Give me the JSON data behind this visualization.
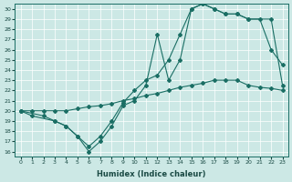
{
  "xlabel": "Humidex (Indice chaleur)",
  "bg_color": "#cce8e5",
  "line_color": "#1a6e64",
  "xlim": [
    -0.5,
    23.5
  ],
  "ylim": [
    15.5,
    30.5
  ],
  "yticks": [
    16,
    17,
    18,
    19,
    20,
    21,
    22,
    23,
    24,
    25,
    26,
    27,
    28,
    29,
    30
  ],
  "xticks": [
    0,
    1,
    2,
    3,
    4,
    5,
    6,
    7,
    8,
    9,
    10,
    11,
    12,
    13,
    14,
    15,
    16,
    17,
    18,
    19,
    20,
    21,
    22,
    23
  ],
  "series1_x": [
    0,
    1,
    2,
    3,
    4,
    5,
    6,
    7,
    8,
    9,
    10,
    11,
    12,
    13,
    14,
    15,
    16,
    17,
    18,
    19,
    20,
    21,
    22,
    23
  ],
  "series1_y": [
    20,
    20,
    20,
    20,
    20,
    20.2,
    20.4,
    20.5,
    20.7,
    21,
    21.2,
    21.5,
    21.7,
    22,
    22.3,
    22.5,
    22.7,
    23,
    23,
    23,
    22.5,
    22.3,
    22.2,
    22
  ],
  "series2_x": [
    0,
    1,
    3,
    4,
    5,
    6,
    7,
    8,
    9,
    10,
    11,
    12,
    13,
    14,
    15,
    16,
    17,
    18,
    19,
    20,
    22,
    23
  ],
  "series2_y": [
    20,
    19.5,
    19,
    18.5,
    17.5,
    16.5,
    17.5,
    19,
    20.8,
    22,
    23,
    23.5,
    25,
    27.5,
    30,
    30.5,
    30,
    29.5,
    29.5,
    29,
    29,
    22.5
  ],
  "series3_x": [
    0,
    2,
    3,
    4,
    5,
    6,
    7,
    8,
    9,
    10,
    11,
    12,
    13,
    14,
    15,
    16,
    17,
    18,
    19,
    20,
    21,
    22,
    23
  ],
  "series3_y": [
    20,
    19.5,
    19,
    18.5,
    17.5,
    16,
    17,
    18.5,
    20.5,
    21,
    22.5,
    27.5,
    23,
    25,
    30,
    30.5,
    30,
    29.5,
    29.5,
    29,
    29,
    26,
    24.5
  ]
}
